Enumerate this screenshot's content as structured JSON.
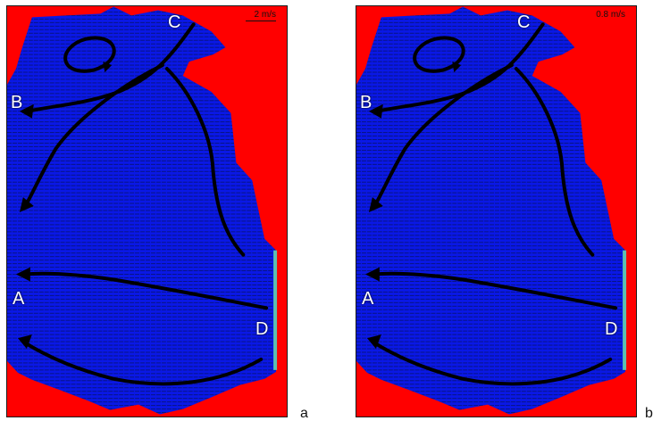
{
  "panels": [
    {
      "id": "a",
      "scale_label": "2 m/s",
      "letter": "a"
    },
    {
      "id": "b",
      "scale_label": "0.8 m/s",
      "letter": "b"
    }
  ],
  "points": {
    "A": "A",
    "B": "B",
    "C": "C",
    "D": "D"
  },
  "colors": {
    "land": "#ff0000",
    "water": "#0a18e6",
    "flow": "#000000"
  }
}
